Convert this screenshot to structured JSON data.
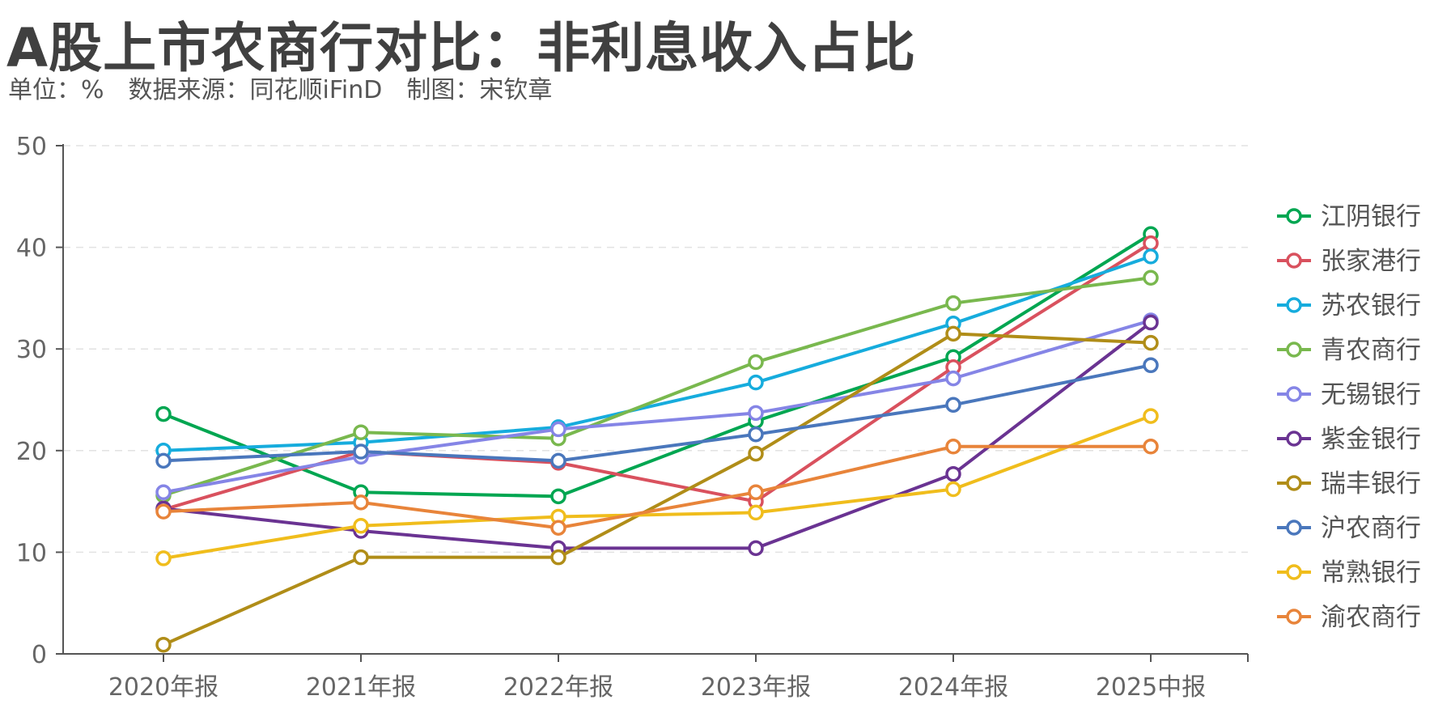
{
  "header": {
    "title": "A股上市农商行对比：非利息收入占比",
    "subtitle": "单位：%　数据来源：同花顺iFinD　制图：宋钦章"
  },
  "chart_data": {
    "type": "line",
    "title": "A股上市农商行对比：非利息收入占比",
    "subtitle": "单位：%　数据来源：同花顺iFinD　制图：宋钦章",
    "categories": [
      "2020年报",
      "2021年报",
      "2022年报",
      "2023年报",
      "2024年报",
      "2025中报"
    ],
    "ylim": [
      0,
      50
    ],
    "yticks": [
      0,
      10,
      20,
      30,
      40,
      50
    ],
    "grid": "horizontal dashed",
    "legend_position": "right",
    "series": [
      {
        "name": "江阴银行",
        "color": "#00A651",
        "values": [
          23.6,
          15.9,
          15.5,
          22.9,
          29.2,
          41.3
        ]
      },
      {
        "name": "张家港行",
        "color": "#D9515E",
        "values": [
          14.2,
          19.9,
          18.8,
          15.0,
          28.2,
          40.4
        ]
      },
      {
        "name": "苏农银行",
        "color": "#16ACDD",
        "values": [
          20.0,
          20.8,
          22.3,
          26.7,
          32.5,
          39.1
        ]
      },
      {
        "name": "青农商行",
        "color": "#79B84E",
        "values": [
          15.6,
          21.8,
          21.2,
          28.7,
          34.5,
          37.0
        ]
      },
      {
        "name": "无锡银行",
        "color": "#8585E6",
        "values": [
          15.9,
          19.4,
          22.1,
          23.7,
          27.1,
          32.8
        ]
      },
      {
        "name": "紫金银行",
        "color": "#6A3392",
        "values": [
          14.3,
          12.1,
          10.4,
          10.4,
          17.7,
          32.6
        ]
      },
      {
        "name": "瑞丰银行",
        "color": "#B08D18",
        "values": [
          0.9,
          9.5,
          9.5,
          19.7,
          31.5,
          30.6
        ]
      },
      {
        "name": "沪农商行",
        "color": "#4A77BC",
        "values": [
          19.0,
          19.9,
          19.0,
          21.6,
          24.5,
          28.4
        ]
      },
      {
        "name": "常熟银行",
        "color": "#F0BD1C",
        "values": [
          9.4,
          12.6,
          13.5,
          13.9,
          16.2,
          23.4
        ]
      },
      {
        "name": "渝农商行",
        "color": "#E8843A",
        "values": [
          14.0,
          14.9,
          12.4,
          15.9,
          20.4,
          20.4
        ]
      }
    ]
  }
}
